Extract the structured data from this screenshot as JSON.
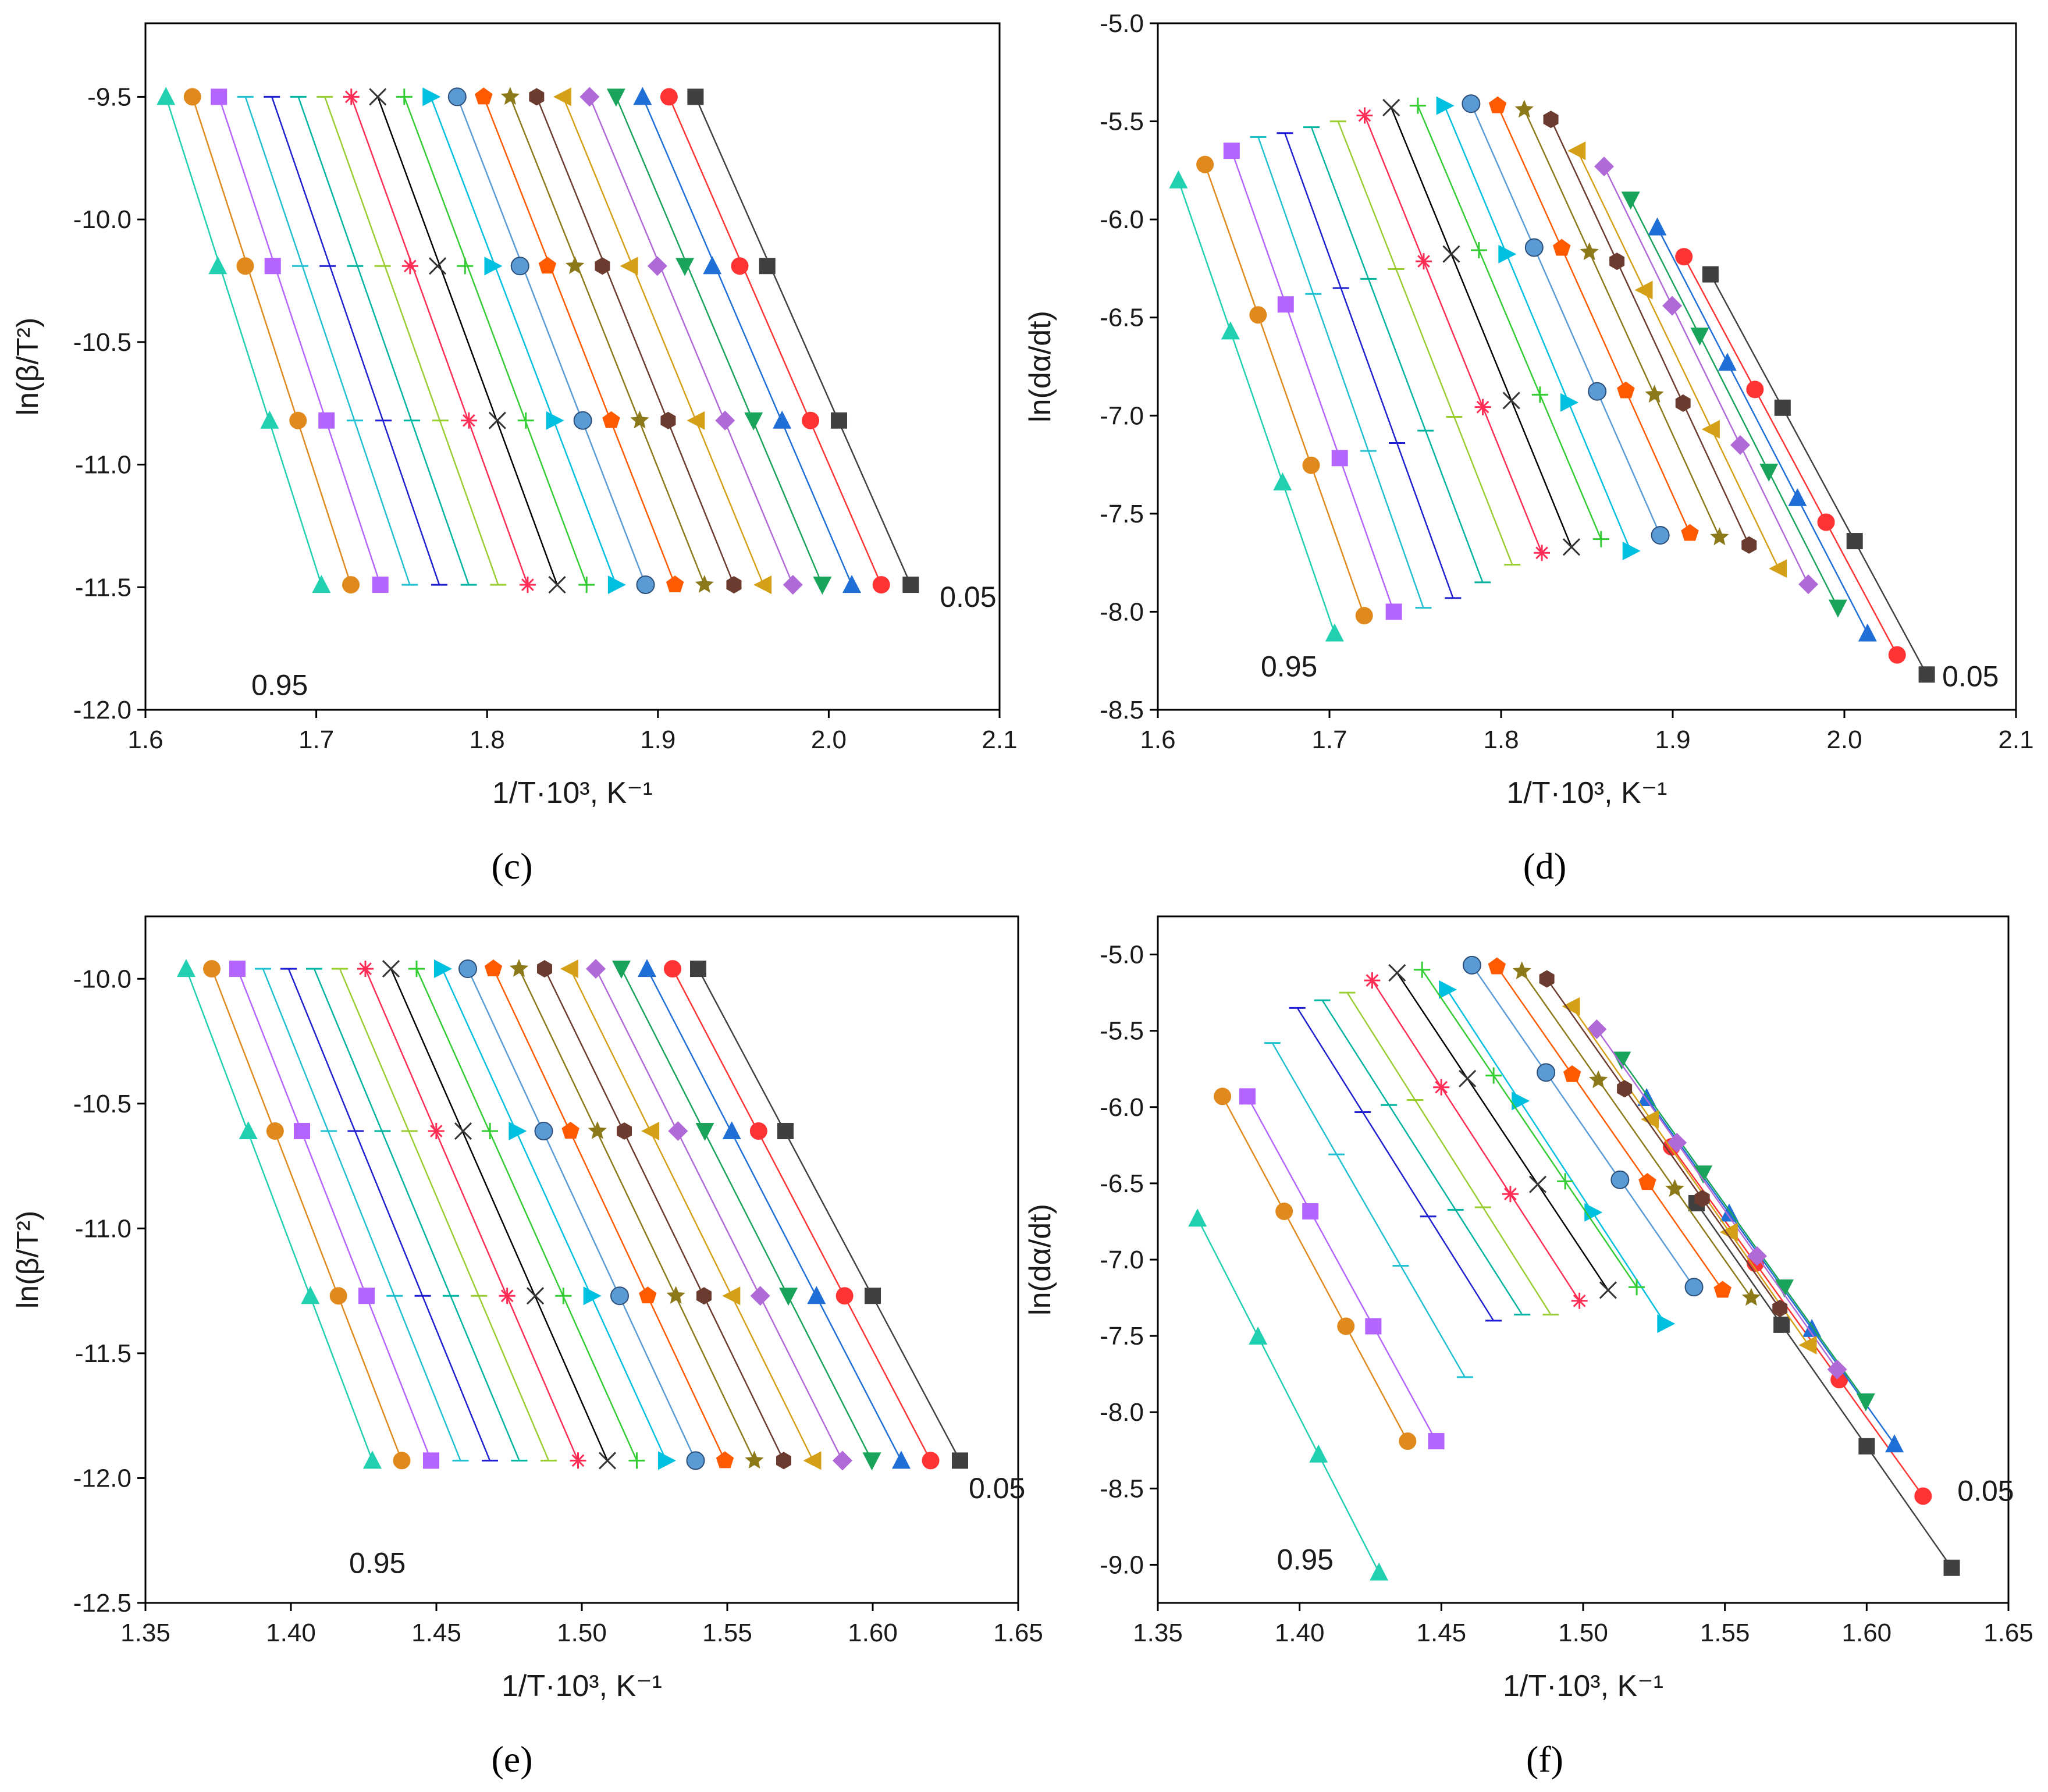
{
  "series_colors": [
    "#404040",
    "#ff3333",
    "#1f6fd6",
    "#1aa35a",
    "#b06ad8",
    "#d4a017",
    "#6b3b2f",
    "#8c7a1a",
    "#ff5a00",
    "#5b9bd5",
    "#00c0e0",
    "#33cc33",
    "#000000",
    "#ff2d55",
    "#9acd32",
    "#00b4a0",
    "#1f1fd0",
    "#20c0d0",
    "#b565ff",
    "#e08a1e",
    "#20d0b0"
  ],
  "series_markers": [
    "square",
    "circle",
    "triangle",
    "triangle-down",
    "diamond",
    "triangle-left",
    "hexagon",
    "star",
    "pentagon",
    "sphere",
    "triangle-right",
    "plus",
    "cross",
    "asterisk",
    "dash",
    "dash",
    "dash",
    "dash",
    "square",
    "circle",
    "triangle"
  ],
  "chart_data": [
    {
      "id": "c",
      "type": "scatter",
      "caption": "(c)",
      "xlabel": "1/T·10³, K⁻¹",
      "ylabel": "ln(β/T²)",
      "xlim": [
        1.6,
        2.1
      ],
      "ylim": [
        -12.0,
        -9.2
      ],
      "xticks": [
        1.6,
        1.7,
        1.8,
        1.9,
        2.0,
        2.1
      ],
      "xtick_labels": [
        "1.6",
        "1.7",
        "1.8",
        "1.9",
        "2.0",
        "2.1"
      ],
      "yticks": [
        -12.0,
        -11.5,
        -11.0,
        -10.5,
        -10.0,
        -9.5
      ],
      "ytick_labels": [
        "-12.0",
        "-11.5",
        "-11.0",
        "-10.5",
        "-10.0",
        "-9.5"
      ],
      "y_levels": [
        -9.5,
        -10.19,
        -10.82,
        -11.49
      ],
      "x_first_top": 1.922,
      "x_first_bottom": 2.048,
      "x_last_top": 1.612,
      "x_last_bottom": 1.703,
      "annotations": [
        {
          "text": "0.05",
          "x": 2.065,
          "y": -11.58
        },
        {
          "text": "0.95",
          "x": 1.662,
          "y": -11.94
        }
      ]
    },
    {
      "id": "d",
      "type": "scatter",
      "caption": "(d)",
      "xlabel": "1/T·10³, K⁻¹",
      "ylabel": "ln(dα/dt)",
      "xlim": [
        1.6,
        2.1
      ],
      "ylim": [
        -8.5,
        -5.0
      ],
      "xticks": [
        1.6,
        1.7,
        1.8,
        1.9,
        2.0,
        2.1
      ],
      "xtick_labels": [
        "1.6",
        "1.7",
        "1.8",
        "1.9",
        "2.0",
        "2.1"
      ],
      "yticks": [
        -8.5,
        -8.0,
        -7.5,
        -7.0,
        -6.5,
        -6.0,
        -5.5,
        -5.0
      ],
      "ytick_labels": [
        "-8.5",
        "-8.0",
        "-7.5",
        "-7.0",
        "-6.5",
        "-6.0",
        "-5.5",
        "-5.0"
      ],
      "top_curve": [
        -6.28,
        -6.19,
        -6.04,
        -5.9,
        -5.73,
        -5.65,
        -5.49,
        -5.44,
        -5.42,
        -5.41,
        -5.42,
        -5.42,
        -5.43,
        -5.47,
        -5.5,
        -5.53,
        -5.56,
        -5.58,
        -5.65,
        -5.72,
        -5.8
      ],
      "bottom_curve": [
        -8.32,
        -8.22,
        -8.11,
        -7.98,
        -7.86,
        -7.78,
        -7.66,
        -7.62,
        -7.6,
        -7.61,
        -7.69,
        -7.63,
        -7.67,
        -7.7,
        -7.76,
        -7.85,
        -7.93,
        -7.98,
        -8.0,
        -8.02,
        -8.11
      ],
      "x_first_top": 1.922,
      "x_first_bottom": 2.048,
      "x_last_top": 1.612,
      "x_last_bottom": 1.703,
      "annotations": [
        {
          "text": "0.05",
          "x": 2.057,
          "y": -8.38
        },
        {
          "text": "0.95",
          "x": 1.66,
          "y": -8.33
        }
      ]
    },
    {
      "id": "e",
      "type": "scatter",
      "caption": "(e)",
      "xlabel": "1/T·10³, K⁻¹",
      "ylabel": "ln(β/T²)",
      "xlim": [
        1.35,
        1.65
      ],
      "ylim": [
        -12.5,
        -9.75
      ],
      "xticks": [
        1.35,
        1.4,
        1.45,
        1.5,
        1.55,
        1.6,
        1.65
      ],
      "xtick_labels": [
        "1.35",
        "1.40",
        "1.45",
        "1.50",
        "1.55",
        "1.60",
        "1.65"
      ],
      "yticks": [
        -12.5,
        -12.0,
        -11.5,
        -11.0,
        -10.5,
        -10.0
      ],
      "ytick_labels": [
        "-12.5",
        "-12.0",
        "-11.5",
        "-11.0",
        "-10.5",
        "-10.0"
      ],
      "y_levels": [
        -9.96,
        -10.61,
        -11.27,
        -11.93
      ],
      "x_first_top": 1.54,
      "x_first_bottom": 1.63,
      "x_last_top": 1.364,
      "x_last_bottom": 1.428,
      "annotations": [
        {
          "text": "0.05",
          "x": 1.633,
          "y": -12.08
        },
        {
          "text": "0.95",
          "x": 1.42,
          "y": -12.38
        }
      ]
    },
    {
      "id": "f",
      "type": "scatter",
      "caption": "(f)",
      "xlabel": "1/T·10³, K⁻¹",
      "ylabel": "ln(dα/dt)",
      "xlim": [
        1.35,
        1.65
      ],
      "ylim": [
        -9.25,
        -4.75
      ],
      "xticks": [
        1.35,
        1.4,
        1.45,
        1.5,
        1.55,
        1.6,
        1.65
      ],
      "xtick_labels": [
        "1.35",
        "1.40",
        "1.45",
        "1.50",
        "1.55",
        "1.60",
        "1.65"
      ],
      "yticks": [
        -9.0,
        -8.5,
        -8.0,
        -7.5,
        -7.0,
        -6.5,
        -6.0,
        -5.5,
        -5.0
      ],
      "ytick_labels": [
        "-9.0",
        "-8.5",
        "-8.0",
        "-7.5",
        "-7.0",
        "-6.5",
        "-6.0",
        "-5.5",
        "-5.0"
      ],
      "top_curve": [
        -6.63,
        -6.26,
        -5.94,
        -5.69,
        -5.49,
        -5.34,
        -5.16,
        -5.11,
        -5.08,
        -5.07,
        -5.23,
        -5.1,
        -5.12,
        -5.17,
        -5.25,
        -5.3,
        -5.35,
        -5.58,
        -5.93,
        -5.93,
        -6.73
      ],
      "bottom_curve": [
        -9.02,
        -8.55,
        -8.21,
        -7.93,
        -7.72,
        -7.56,
        -7.32,
        -7.25,
        -7.2,
        -7.18,
        -7.42,
        -7.18,
        -7.2,
        -7.27,
        -7.36,
        -7.36,
        -7.4,
        -7.77,
        -8.19,
        -8.19,
        -9.05
      ],
      "x_first_top": 1.54,
      "x_first_bottom": 1.63,
      "x_last_top": 1.364,
      "x_last_bottom": 1.428,
      "annotations": [
        {
          "text": "0.05",
          "x": 1.632,
          "y": -8.58
        },
        {
          "text": "0.95",
          "x": 1.392,
          "y": -9.03
        }
      ]
    }
  ]
}
